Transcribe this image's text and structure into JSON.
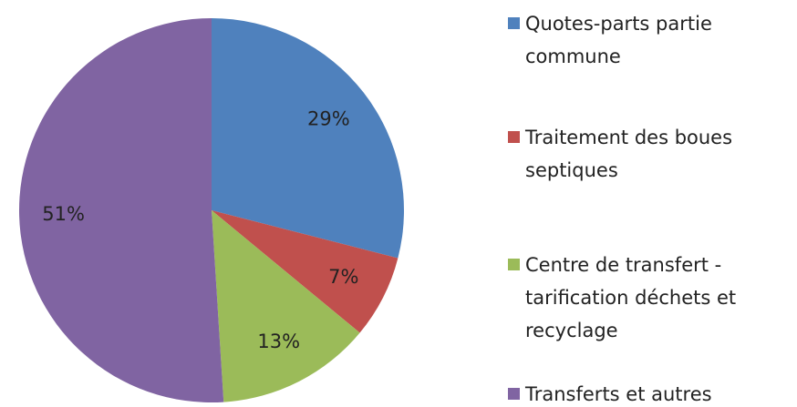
{
  "chart_data": {
    "type": "pie",
    "categories": [
      "Quotes-parts partie commune",
      "Traitement des boues septiques",
      "Centre de transfert - tarification déchets et recyclage",
      "Transferts et autres"
    ],
    "values": [
      29,
      7,
      13,
      51
    ],
    "value_labels": [
      "29%",
      "7%",
      "13%",
      "51%"
    ],
    "colors": [
      "#4f81bd",
      "#c0504d",
      "#9bbb59",
      "#8064a2"
    ]
  }
}
